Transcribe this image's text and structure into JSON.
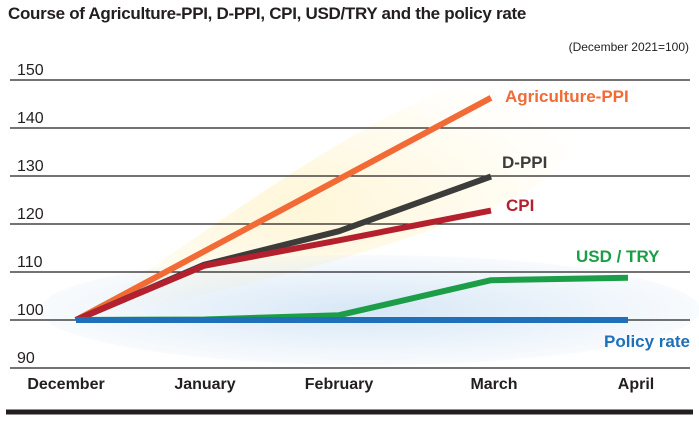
{
  "chart_data": {
    "type": "line",
    "title": "Course of Agriculture-PPI, D-PPI, CPI, USD/TRY and the policy rate",
    "subtitle": "(December 2021=100)",
    "categories": [
      "December",
      "January",
      "February",
      "March",
      "April"
    ],
    "y_ticks": [
      "150",
      "140",
      "130",
      "120",
      "110",
      "100",
      "90"
    ],
    "ylim": [
      90,
      150
    ],
    "grid": true,
    "series": [
      {
        "name": "Agriculture-PPI",
        "color": "#f26a35",
        "x": [
          0,
          3
        ],
        "values": [
          100,
          146.3
        ]
      },
      {
        "name": "D-PPI",
        "color": "#3c3c3b",
        "x": [
          0,
          1,
          2,
          3
        ],
        "values": [
          100,
          111.5,
          118.5,
          129.9
        ]
      },
      {
        "name": "CPI",
        "color": "#b5202e",
        "x": [
          0,
          1,
          2,
          3
        ],
        "values": [
          100,
          111.3,
          116.6,
          122.8
        ]
      },
      {
        "name": "USD / TRY",
        "color": "#1c9e48",
        "x": [
          0,
          1,
          2,
          3,
          4
        ],
        "values": [
          100,
          100.1,
          101,
          108.3,
          108.8
        ]
      },
      {
        "name": "Policy rate",
        "color": "#1f6fb9",
        "x": [
          0,
          1,
          2,
          3,
          4
        ],
        "values": [
          100,
          100,
          100,
          100,
          100
        ]
      }
    ]
  }
}
